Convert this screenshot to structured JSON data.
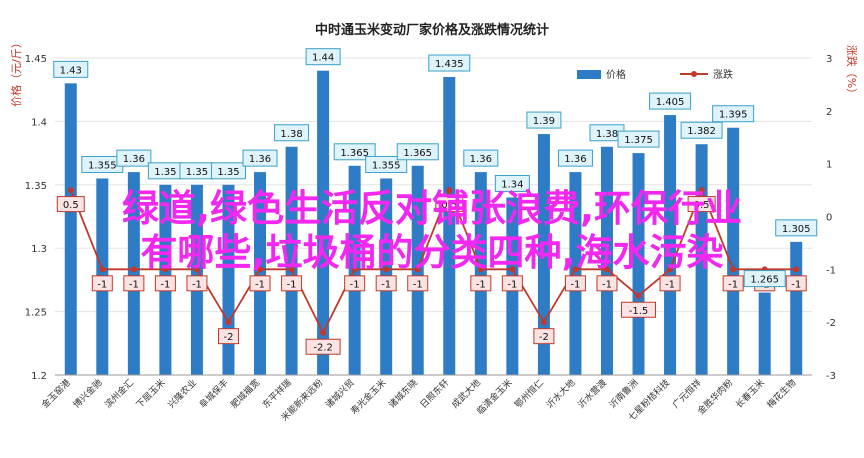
{
  "overlay": {
    "line1": "绿道,绿色生活反对铺张浪费,环保行业",
    "line2": "有哪些,垃圾桶的分类四种,海水污染"
  },
  "colors": {
    "bar": "#2e7bc6",
    "bar_edge": "#1c5e9f",
    "line": "#c0392b",
    "marker": "#c0392b",
    "bar_label_fill": "#dff3fb",
    "bar_label_border": "#3aa0c8",
    "chg_label_fill": "#fbe3e3",
    "chg_label_border": "#c0392b",
    "grid": "#e3e3e3",
    "axis_title": "#c0392b"
  },
  "chart_data": {
    "type": "bar",
    "title": "中时通玉米变动厂家价格及涨跌情况统计",
    "ylabel_left": "价格（元/斤）",
    "ylabel_right": "涨跌（%）",
    "ylim_left": [
      1.2,
      1.45
    ],
    "yticks_left": [
      "1.45",
      "1.4",
      "1.35",
      "1.3",
      "1.25",
      "1.2"
    ],
    "ylim_right": [
      -3,
      3
    ],
    "yticks_right": [
      "3",
      "2",
      "1",
      "0",
      "-1",
      "-2",
      "-3"
    ],
    "grid": true,
    "legend_position": "top-right",
    "categories": [
      "金玉窑港",
      "博兴金驰",
      "滨州金汇",
      "下层玉米",
      "兴隆农业",
      "阜城保丰",
      "肥城福宽",
      "东平祥瑞",
      "米能新来远粉",
      "诸城兴贸",
      "寿光金玉米",
      "诸城东晓",
      "日照东轩",
      "成武大地",
      "临清金玉米",
      "鄂州恒仁",
      "沂水大地",
      "沂水营渡",
      "沂南鲁洲",
      "七星粉桔科技",
      "广元恒祥",
      "金胜华肉粉",
      "长春玉米",
      "梅花生物"
    ],
    "series": [
      {
        "name": "价格",
        "type": "bar",
        "values": [
          1.43,
          1.355,
          1.36,
          1.35,
          1.35,
          1.35,
          1.36,
          1.38,
          1.44,
          1.365,
          1.355,
          1.365,
          1.435,
          1.36,
          1.34,
          1.39,
          1.36,
          1.38,
          1.375,
          1.405,
          1.382,
          1.395,
          1.265,
          1.305
        ],
        "labels": [
          "1.43",
          "1.355",
          "1.36",
          "1.35",
          "1.35",
          "1.35",
          "1.36",
          "1.38",
          "1.44",
          "1.365",
          "1.355",
          "1.365",
          "1.435",
          "1.36",
          "1.34",
          "1.39",
          "1.36",
          "1.38",
          "1.375",
          "1.405",
          "1.382",
          "1.395",
          "1.265",
          "1.305"
        ]
      },
      {
        "name": "涨跌",
        "type": "line",
        "axis": "right",
        "values": [
          0.5,
          -1,
          -1,
          -1,
          -1,
          -2,
          -1,
          -1,
          -2.2,
          -1,
          -1,
          -1,
          0.5,
          -1,
          -1,
          -2,
          -1,
          -1,
          -1.5,
          -1,
          0.5,
          -1,
          -1,
          -1
        ],
        "labels": [
          "0.5",
          "-1",
          "-1",
          "-1",
          "-1",
          "-2",
          "-1",
          "-1",
          "-2.2",
          "-1",
          "-1",
          "-1",
          "0.5",
          "-1",
          "-1",
          "-2",
          "-1",
          "-1",
          "-1.5",
          "-1",
          "0.5",
          "-1",
          "-1",
          "-1"
        ]
      }
    ]
  }
}
